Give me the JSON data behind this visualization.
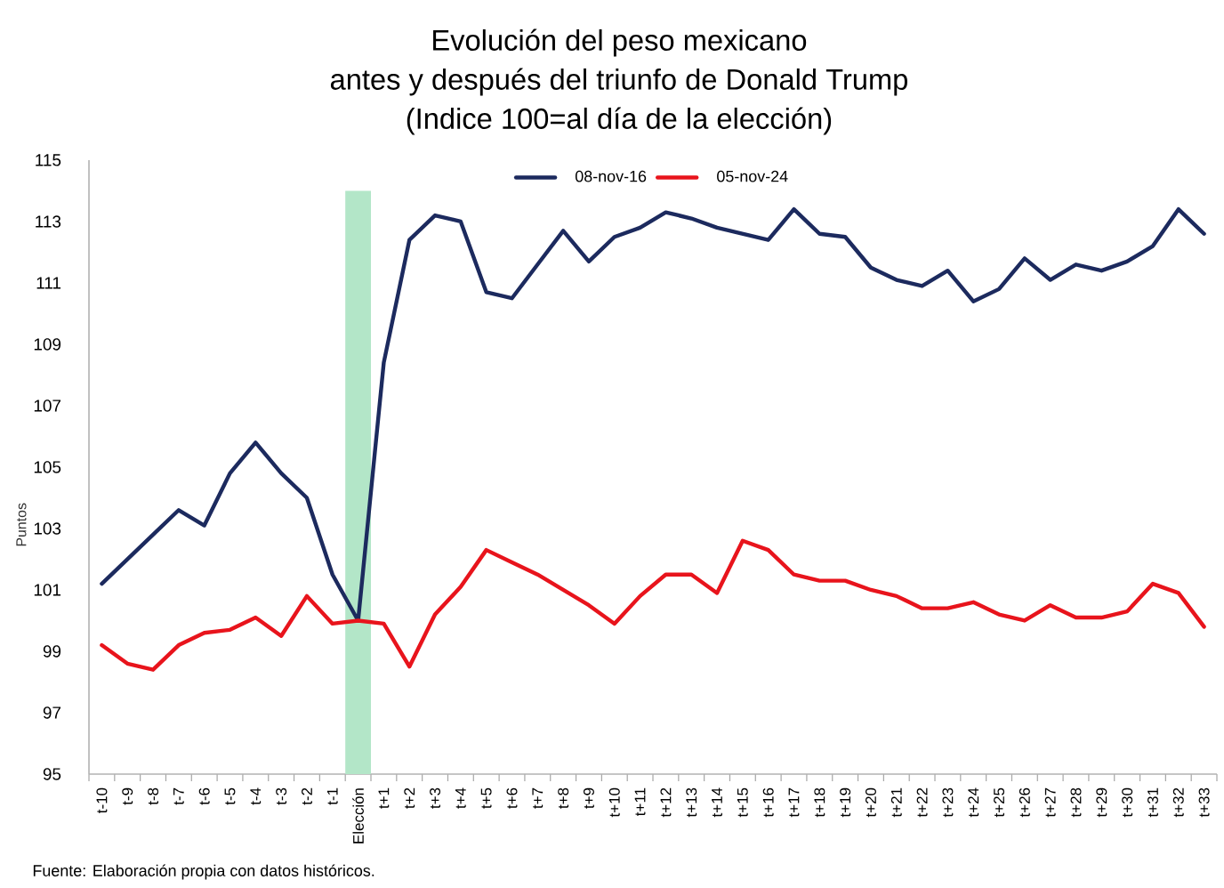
{
  "chart_data": {
    "type": "line",
    "title": "Evolución del peso mexicano",
    "subtitle": "antes y después del triunfo de Donald Trump",
    "ylabel": "Puntos",
    "annotations": [
      "(Indice 100=al día de la elección)",
      "Fuente: Elaboración propia con datos históricos."
    ],
    "categories": [
      "t-10",
      "t-9",
      "t-8",
      "t-7",
      "t-6",
      "t-5",
      "t-4",
      "t-3",
      "t-2",
      "t-1",
      "Elección",
      "t+1",
      "t+2",
      "t+3",
      "t+4",
      "t+5",
      "t+6",
      "t+7",
      "t+8",
      "t+9",
      "t+10",
      "t+11",
      "t+12",
      "t+13",
      "t+14",
      "t+15",
      "t+16",
      "t+17",
      "t+18",
      "t+19",
      "t+20",
      "t+21",
      "t+22",
      "t+23",
      "t+24",
      "t+25",
      "t+26",
      "t+27",
      "t+28",
      "t+29",
      "t+30",
      "t+31",
      "t+32",
      "t+33"
    ],
    "series": [
      {
        "type": "bar",
        "color": "#b3e6c8",
        "values": [
          null,
          null,
          null,
          null,
          null,
          null,
          null,
          null,
          null,
          null,
          114,
          null,
          null,
          null,
          null,
          null,
          null,
          null,
          null,
          null,
          null,
          null,
          null,
          null,
          null,
          null,
          null,
          null,
          null,
          null,
          null,
          null,
          null,
          null,
          null,
          null,
          null,
          null,
          null,
          null,
          null,
          null,
          null,
          null
        ]
      },
      {
        "name": "08-nov-16",
        "color": "#1c2a5e",
        "values": [
          101.2,
          102.0,
          102.8,
          103.6,
          103.1,
          104.8,
          105.8,
          104.8,
          104.0,
          101.5,
          100.0,
          108.4,
          112.4,
          113.2,
          113.0,
          110.7,
          110.5,
          111.6,
          112.7,
          111.7,
          112.5,
          112.8,
          113.3,
          113.1,
          112.8,
          112.6,
          112.4,
          113.4,
          112.6,
          112.5,
          111.5,
          111.1,
          110.9,
          111.4,
          110.4,
          110.8,
          111.8,
          111.1,
          111.6,
          111.4,
          111.7,
          112.2,
          113.4,
          112.6
        ]
      },
      {
        "name": "05-nov-24",
        "color": "#e8141c",
        "values": [
          99.2,
          98.6,
          98.4,
          99.2,
          99.6,
          99.7,
          100.1,
          99.5,
          100.8,
          99.9,
          100.0,
          99.9,
          98.5,
          100.2,
          101.1,
          102.3,
          101.9,
          101.5,
          101.0,
          100.5,
          99.9,
          100.8,
          101.5,
          101.5,
          100.9,
          102.6,
          102.3,
          101.5,
          101.3,
          101.3,
          101.0,
          100.8,
          100.4,
          100.4,
          100.6,
          100.2,
          100.0,
          100.5,
          100.1,
          100.1,
          100.3,
          101.2,
          100.9,
          99.8
        ]
      }
    ],
    "ylim": [
      95,
      115
    ],
    "yticks": [
      95,
      97,
      99,
      101,
      103,
      105,
      107,
      109,
      111,
      113,
      115
    ],
    "legend": "top",
    "marker": "none",
    "line_style": "solid"
  }
}
